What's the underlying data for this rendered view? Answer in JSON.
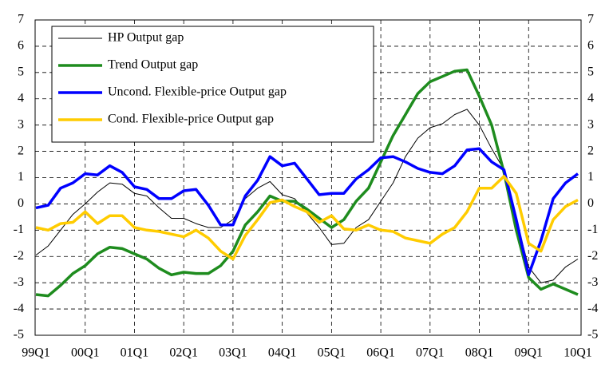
{
  "chart_data": {
    "type": "line",
    "categories": [
      "99Q1",
      null,
      null,
      null,
      "00Q1",
      null,
      null,
      null,
      "01Q1",
      null,
      null,
      null,
      "02Q1",
      null,
      null,
      null,
      "03Q1",
      null,
      null,
      null,
      "04Q1",
      null,
      null,
      null,
      "05Q1",
      null,
      null,
      null,
      "06Q1",
      null,
      null,
      null,
      "07Q1",
      null,
      null,
      null,
      "08Q1",
      null,
      null,
      null,
      "09Q1",
      null,
      null,
      null,
      "10Q1"
    ],
    "series": [
      {
        "name": "HP Output gap",
        "color": "#000000",
        "width": 1,
        "values": [
          -1.95,
          -1.6,
          -1.0,
          -0.4,
          0.0,
          0.45,
          0.8,
          0.75,
          0.4,
          0.3,
          -0.15,
          -0.55,
          -0.55,
          -0.75,
          -0.9,
          -0.9,
          -0.6,
          0.2,
          0.6,
          0.85,
          0.35,
          0.2,
          -0.35,
          -0.9,
          -1.55,
          -1.5,
          -0.9,
          -0.6,
          0.1,
          0.8,
          1.8,
          2.5,
          2.9,
          3.05,
          3.4,
          3.6,
          3.0,
          2.1,
          1.3,
          -0.6,
          -2.4,
          -3.0,
          -2.9,
          -2.4,
          -2.1
        ]
      },
      {
        "name": "Trend Output gap",
        "color": "#1e8c1e",
        "width": 3.5,
        "values": [
          -3.45,
          -3.5,
          -3.1,
          -2.65,
          -2.35,
          -1.9,
          -1.65,
          -1.7,
          -1.9,
          -2.1,
          -2.45,
          -2.7,
          -2.6,
          -2.65,
          -2.65,
          -2.35,
          -1.8,
          -0.8,
          -0.3,
          0.3,
          0.1,
          0.1,
          -0.2,
          -0.55,
          -0.9,
          -0.6,
          0.1,
          0.6,
          1.6,
          2.6,
          3.4,
          4.2,
          4.65,
          4.85,
          5.05,
          5.1,
          4.1,
          3.0,
          1.2,
          -1.0,
          -2.8,
          -3.25,
          -3.05,
          -3.25,
          -3.45
        ]
      },
      {
        "name": "Uncond. Flexible-price Output gap",
        "color": "#0000ff",
        "width": 3.5,
        "values": [
          -0.15,
          -0.05,
          0.6,
          0.8,
          1.15,
          1.1,
          1.45,
          1.2,
          0.65,
          0.55,
          0.2,
          0.2,
          0.5,
          0.55,
          -0.05,
          -0.8,
          -0.8,
          0.3,
          0.9,
          1.8,
          1.45,
          1.55,
          0.95,
          0.35,
          0.4,
          0.4,
          0.95,
          1.3,
          1.75,
          1.8,
          1.6,
          1.35,
          1.2,
          1.15,
          1.45,
          2.05,
          2.1,
          1.6,
          1.3,
          -0.6,
          -2.7,
          -1.4,
          0.2,
          0.8,
          1.15
        ]
      },
      {
        "name": "Cond. Flexible-price Output gap",
        "color": "#ffcc00",
        "width": 3.5,
        "values": [
          -0.9,
          -1.0,
          -0.75,
          -0.7,
          -0.3,
          -0.75,
          -0.45,
          -0.45,
          -0.9,
          -1.0,
          -1.05,
          -1.15,
          -1.25,
          -1.0,
          -1.3,
          -1.8,
          -2.1,
          -1.2,
          -0.6,
          0.05,
          0.15,
          -0.1,
          -0.3,
          -0.7,
          -0.45,
          -0.95,
          -1.0,
          -0.8,
          -1.0,
          -1.05,
          -1.3,
          -1.4,
          -1.5,
          -1.15,
          -0.9,
          -0.3,
          0.6,
          0.6,
          1.05,
          0.4,
          -1.5,
          -1.8,
          -0.6,
          -0.1,
          0.15
        ]
      }
    ],
    "ylim": [
      -5,
      7
    ],
    "yticks": [
      -5,
      -4,
      -3,
      -2,
      -1,
      0,
      1,
      2,
      3,
      4,
      5,
      6,
      7
    ],
    "grid": true,
    "legend": "upper left"
  }
}
